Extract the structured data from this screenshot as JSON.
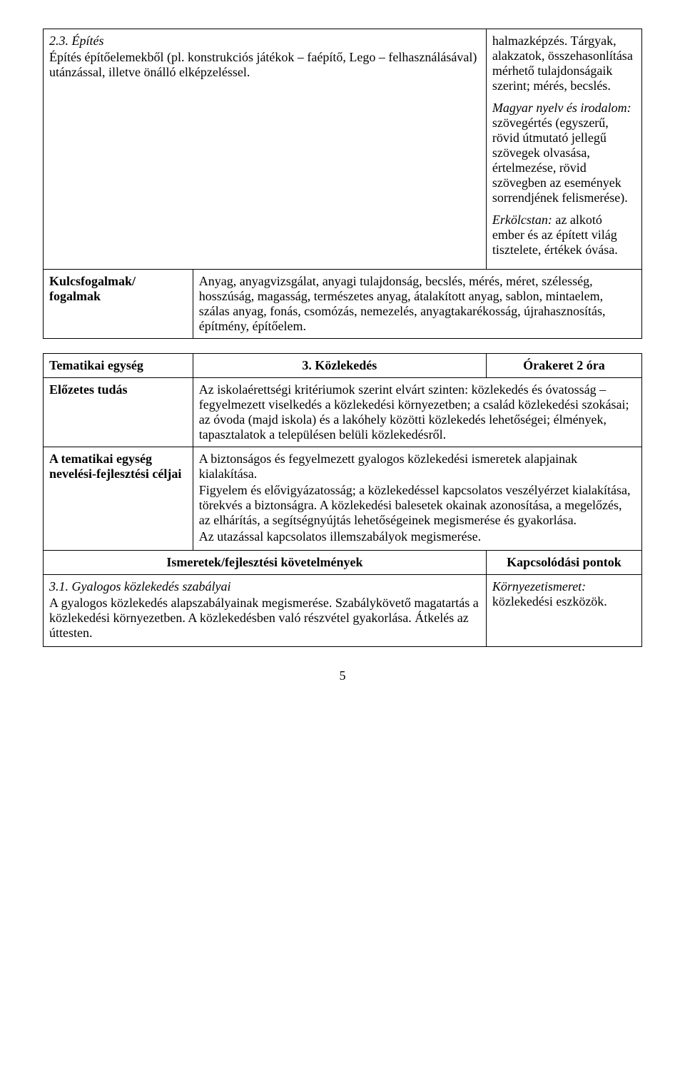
{
  "include_prev_header": false,
  "table1": {
    "left": {
      "heading": "2.3. Építés",
      "body": "Építés építőelemekből (pl. konstrukciós játékok – faépítő, Lego – felhasználásával) utánzással, illetve önálló elképzeléssel."
    },
    "right_blocks": [
      "halmazképzés. Tárgyak, alakzatok, összehasonlítása mérhető tulajdonságaik szerint; mérés, becslés.",
      "<span class=\"italic\">Magyar nyelv és irodalom:</span> szövegértés (egyszerű, rövid útmutató jellegű szövegek olvasása, értelmezése, rövid szövegben az események sorrendjének felismerése).",
      "<span class=\"italic\">Erkölcstan:</span> az alkotó ember és az épített világ tisztelete, értékek óvása."
    ],
    "row2_label": "Kulcsfogalmak/ fogalmak",
    "row2_body": "Anyag, anyagvizsgálat, anyagi tulajdonság, becslés, mérés, méret, szélesség, hosszúság, magasság, természetes anyag, átalakított anyag, sablon, mintaelem, szálas anyag, fonás, csomózás, nemezelés, anyagtakarékosság, újrahasznosítás, építmény, építőelem."
  },
  "table2": {
    "row1_label": "Tematikai egység",
    "row1_title": "3. Közlekedés",
    "row1_right": "Órakeret 2 óra",
    "row2_label": "Előzetes tudás",
    "row2_body": "Az iskolaérettségi kritériumok szerint elvárt szinten: közlekedés és óvatosság – fegyelmezett viselkedés a közlekedési környezetben; a család közlekedési szokásai; az óvoda (majd iskola) és a lakóhely közötti közlekedés lehetőségei; élmények, tapasztalatok a településen belüli közlekedésről.",
    "row3_label": "A tematikai egység nevelési-fejlesztési céljai",
    "row3_body": "A biztonságos és fegyelmezett gyalogos közlekedési ismeretek alapjainak kialakítása.\nFigyelem és elővigyázatosság; a közlekedéssel kapcsolatos veszélyérzet kialakítása, törekvés a biztonságra. A közlekedési balesetek okainak azonosítása, a megelőzés, az elhárítás, a segítségnyújtás lehetőségeinek megismerése és gyakorlása.\nAz utazással kapcsolatos illemszabályok megismerése.",
    "row4_left": "Ismeretek/fejlesztési követelmények",
    "row4_right": "Kapcsolódási pontok",
    "row5_left_heading": "3.1. Gyalogos közlekedés szabályai",
    "row5_left_body": "A gyalogos közlekedés alapszabályainak megismerése. Szabálykövető magatartás a közlekedési környezetben. A közlekedésben való részvétel gyakorlása. Átkelés az úttesten.",
    "row5_right": "<span class=\"italic\">Környezetismeret:</span> közlekedési eszközök."
  },
  "page_number": "5"
}
